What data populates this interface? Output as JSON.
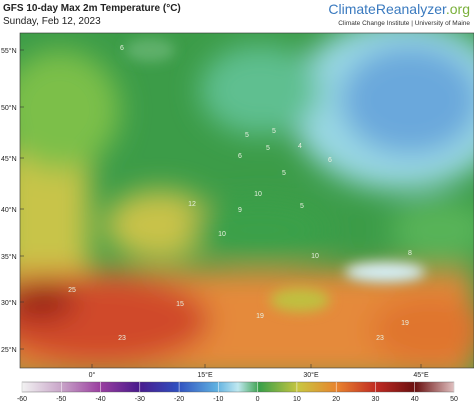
{
  "header": {
    "title": "GFS 10-day Max 2m Temperature (°C)",
    "subtitle": "Sunday, Feb 12, 2023",
    "brand_main": "ClimateReanalyzer",
    "brand_suffix": ".org",
    "institute": "Climate Change Institute | University of Maine"
  },
  "map": {
    "lat_labels": [
      "55°N",
      "50°N",
      "45°N",
      "40°N",
      "35°N",
      "30°N",
      "25°N"
    ],
    "lon_labels": [
      "0°",
      "15°E",
      "30°E",
      "45°E"
    ],
    "point_labels": [
      "6",
      "5",
      "5",
      "6",
      "5",
      "4",
      "5",
      "6",
      "10",
      "12",
      "10",
      "5",
      "9",
      "8",
      "10",
      "15",
      "19",
      "23",
      "25",
      "23",
      "19"
    ]
  },
  "colorbar": {
    "ticks": [
      -60,
      -50,
      -40,
      -30,
      -20,
      -10,
      0,
      10,
      20,
      30,
      40,
      50
    ]
  }
}
